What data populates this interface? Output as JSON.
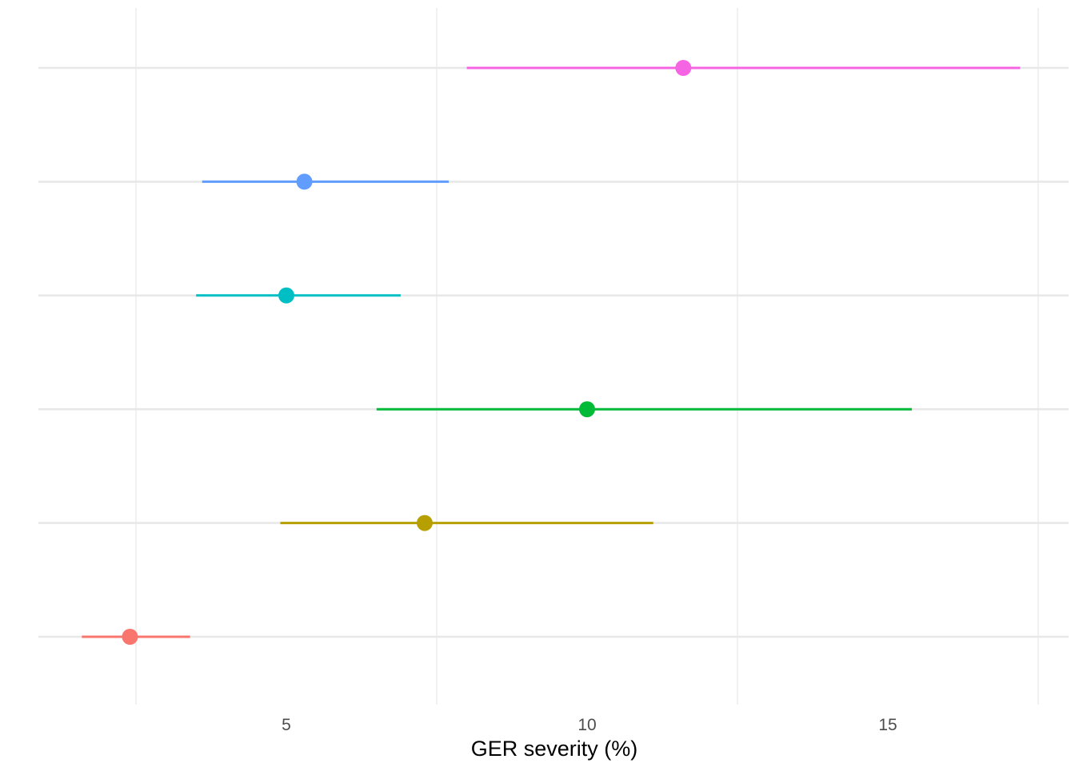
{
  "chart_data": {
    "type": "forest",
    "title": "",
    "xlabel": "GER severity (%)",
    "ylabel": "",
    "xlim": [
      1.1,
      17.4
    ],
    "x_ticks": [
      5,
      10,
      15
    ],
    "x_tick_labels": [
      "5",
      "10",
      "15"
    ],
    "x_minor_gridlines": [
      2.5,
      7.5,
      12.5,
      17.5
    ],
    "grid": true,
    "legend": "none",
    "rows": [
      {
        "estimate": 2.4,
        "lower": 1.6,
        "upper": 3.4,
        "color": "#F8766D"
      },
      {
        "estimate": 7.3,
        "lower": 4.9,
        "upper": 11.1,
        "color": "#B79F00"
      },
      {
        "estimate": 10.0,
        "lower": 6.5,
        "upper": 15.4,
        "color": "#00BA38"
      },
      {
        "estimate": 5.0,
        "lower": 3.5,
        "upper": 6.9,
        "color": "#00BFC4"
      },
      {
        "estimate": 5.3,
        "lower": 3.6,
        "upper": 7.7,
        "color": "#619CFF"
      },
      {
        "estimate": 11.6,
        "lower": 8.0,
        "upper": 17.2,
        "color": "#F564E3"
      }
    ]
  }
}
